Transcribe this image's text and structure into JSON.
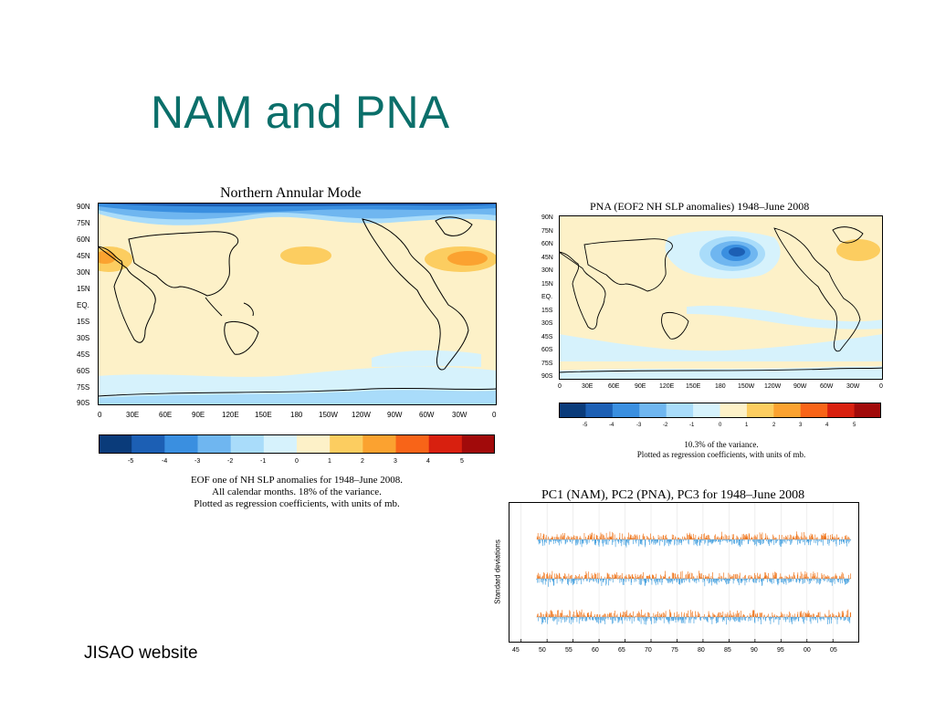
{
  "slide": {
    "title": "NAM and PNA",
    "footer": "JISAO website"
  },
  "colors": {
    "title": "#0b6f6a",
    "scale": [
      "#0a3b7a",
      "#1c5fb4",
      "#3a8fe0",
      "#6fb6f0",
      "#a9dcfa",
      "#d6f2fc",
      "#fdf1c8",
      "#fccd60",
      "#fba230",
      "#f86418",
      "#d8200f",
      "#a10a0a"
    ],
    "pc_positive": "#f07820",
    "pc_negative": "#4aa3e0"
  },
  "nam_map": {
    "title": "Northern Annular Mode",
    "lat_labels": [
      "90N",
      "75N",
      "60N",
      "45N",
      "30N",
      "15N",
      "EQ.",
      "15S",
      "30S",
      "45S",
      "60S",
      "75S",
      "90S"
    ],
    "lon_labels": [
      "0",
      "30E",
      "60E",
      "90E",
      "120E",
      "150E",
      "180",
      "150W",
      "120W",
      "90W",
      "60W",
      "30W",
      "0"
    ],
    "colorbar_labels": [
      "-5",
      "-4",
      "-3",
      "-2",
      "-1",
      "0",
      "1",
      "2",
      "3",
      "4",
      "5"
    ],
    "caption": [
      "EOF one of  NH SLP anomalies for 1948–June 2008.",
      "All calendar months.  18% of the variance.",
      "Plotted as regression coefficients, with units of mb."
    ]
  },
  "pna_map": {
    "title": "PNA (EOF2 NH SLP anomalies) 1948–June 2008",
    "lat_labels": [
      "90N",
      "75N",
      "60N",
      "45N",
      "30N",
      "15N",
      "EQ.",
      "15S",
      "30S",
      "45S",
      "60S",
      "75S",
      "90S"
    ],
    "lon_labels": [
      "0",
      "30E",
      "60E",
      "90E",
      "120E",
      "150E",
      "180",
      "150W",
      "120W",
      "90W",
      "60W",
      "30W",
      "0"
    ],
    "colorbar_labels": [
      "-5",
      "-4",
      "-3",
      "-2",
      "-1",
      "0",
      "1",
      "2",
      "3",
      "4",
      "5"
    ],
    "caption": [
      "10.3% of the variance.",
      "Plotted as regression coefficients, with units of mb."
    ]
  },
  "pc_chart": {
    "title": "PC1 (NAM), PC2 (PNA), PC3 for 1948–June 2008",
    "ylabel": "Standard deviations",
    "x_ticks": [
      "45",
      "50",
      "55",
      "60",
      "65",
      "70",
      "75",
      "80",
      "85",
      "90",
      "95",
      "00",
      "05"
    ]
  },
  "chart_data": {
    "type": "bar",
    "title": "PC1 (NAM), PC2 (PNA), PC3 for 1948–June 2008",
    "ylabel": "Standard deviations",
    "x_ticks": [
      "45",
      "50",
      "55",
      "60",
      "65",
      "70",
      "75",
      "80",
      "85",
      "90",
      "95",
      "00",
      "05"
    ],
    "xlim": [
      1944,
      2009
    ],
    "series": [
      {
        "name": "PC1 (NAM)",
        "start": 1948,
        "end": 2008.5
      },
      {
        "name": "PC2 (PNA)",
        "start": 1948,
        "end": 2008.5
      },
      {
        "name": "PC3",
        "start": 1948,
        "end": 2008.5
      }
    ],
    "grid": false
  }
}
